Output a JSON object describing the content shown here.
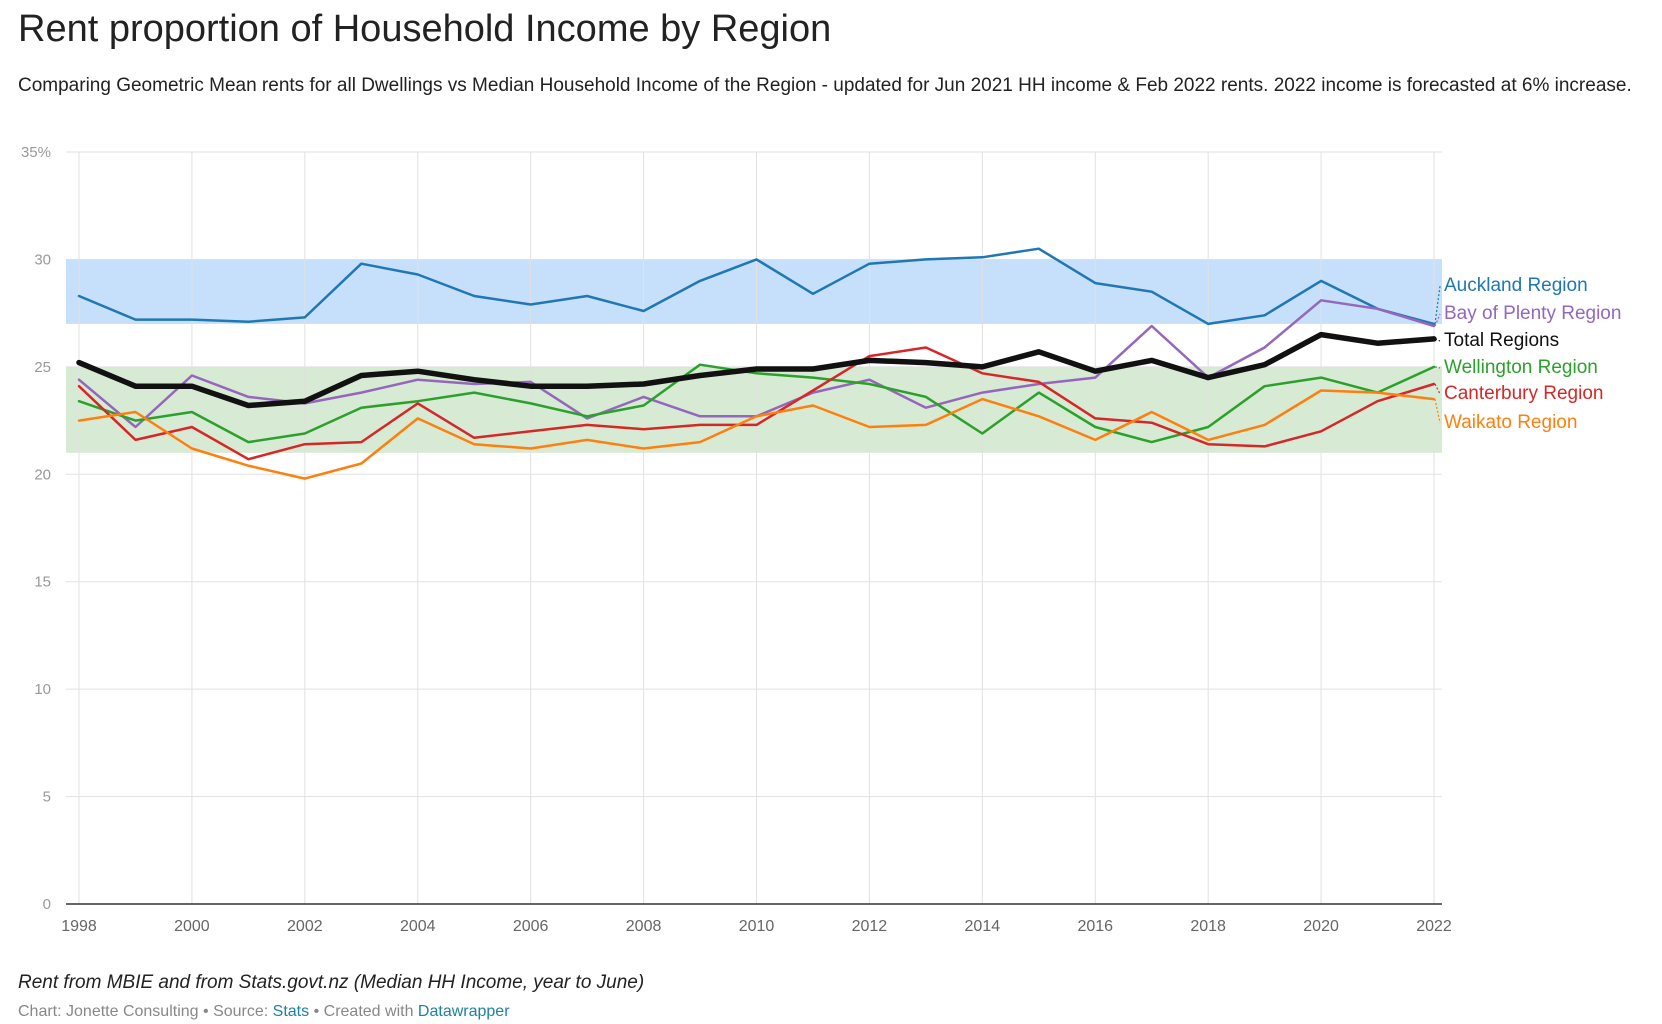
{
  "title": "Rent proportion of Household Income by Region",
  "subtitle": "Comparing Geometric Mean rents for all Dwellings vs Median Household Income of the Region - updated for Jun 2021 HH income & Feb 2022 rents. 2022 income is forecasted at 6% increase.",
  "notes": "Rent from MBIE and from Stats.govt.nz (Median HH Income, year to June)",
  "footer": {
    "chart_label": "Chart: Jonette Consulting",
    "separator": "•",
    "source_label": "Source:",
    "source_link": "Stats",
    "created_label": "Created with",
    "created_link": "Datawrapper"
  },
  "chart_data": {
    "type": "line",
    "x": [
      1998,
      1999,
      2000,
      2001,
      2002,
      2003,
      2004,
      2005,
      2006,
      2007,
      2008,
      2009,
      2010,
      2011,
      2012,
      2013,
      2014,
      2015,
      2016,
      2017,
      2018,
      2019,
      2020,
      2021,
      2022
    ],
    "xlim": [
      1998,
      2022
    ],
    "ylim": [
      0,
      35
    ],
    "x_ticks": [
      "1998",
      "2000",
      "2002",
      "2004",
      "2006",
      "2008",
      "2010",
      "2012",
      "2014",
      "2016",
      "2018",
      "2020",
      "2022"
    ],
    "y_ticks": [
      "0",
      "5",
      "10",
      "15",
      "20",
      "25",
      "30",
      "35%"
    ],
    "grid": true,
    "legend": "inline-right",
    "bands": [
      {
        "from": 27,
        "to": 30,
        "color": "#c6dffa"
      },
      {
        "from": 21,
        "to": 25,
        "color": "#d7ead3"
      }
    ],
    "series": [
      {
        "name": "Auckland Region",
        "color": "#1f77b4",
        "width": 2.5,
        "values": [
          28.3,
          27.2,
          27.2,
          27.1,
          27.3,
          29.8,
          29.3,
          28.3,
          27.9,
          28.3,
          27.6,
          29.0,
          30.0,
          28.4,
          29.8,
          30.0,
          30.1,
          30.5,
          28.9,
          28.5,
          27.0,
          27.4,
          29.0,
          27.7,
          27.0
        ]
      },
      {
        "name": "Bay of Plenty Region",
        "color": "#9467bd",
        "width": 2.5,
        "values": [
          24.4,
          22.2,
          24.6,
          23.6,
          23.3,
          23.8,
          24.4,
          24.2,
          24.3,
          22.6,
          23.6,
          22.7,
          22.7,
          23.8,
          24.4,
          23.1,
          23.8,
          24.2,
          24.5,
          26.9,
          24.5,
          25.9,
          28.1,
          27.7,
          26.9
        ]
      },
      {
        "name": "Total Regions",
        "color": "#111111",
        "width": 5.5,
        "values": [
          25.2,
          24.1,
          24.1,
          23.2,
          23.4,
          24.6,
          24.8,
          24.4,
          24.1,
          24.1,
          24.2,
          24.6,
          24.9,
          24.9,
          25.3,
          25.2,
          25.0,
          25.7,
          24.8,
          25.3,
          24.5,
          25.1,
          26.5,
          26.1,
          26.3
        ]
      },
      {
        "name": "Wellington Region",
        "color": "#2ca02c",
        "width": 2.5,
        "values": [
          23.4,
          22.5,
          22.9,
          21.5,
          21.9,
          23.1,
          23.4,
          23.8,
          23.3,
          22.7,
          23.2,
          25.1,
          24.7,
          24.5,
          24.2,
          23.6,
          21.9,
          23.8,
          22.2,
          21.5,
          22.2,
          24.1,
          24.5,
          23.8,
          25.0
        ]
      },
      {
        "name": "Canterbury Region",
        "color": "#d62728",
        "width": 2.5,
        "values": [
          24.1,
          21.6,
          22.2,
          20.7,
          21.4,
          21.5,
          23.3,
          21.7,
          22.0,
          22.3,
          22.1,
          22.3,
          22.3,
          23.9,
          25.5,
          25.9,
          24.7,
          24.3,
          22.6,
          22.4,
          21.4,
          21.3,
          22.0,
          23.4,
          24.2
        ]
      },
      {
        "name": "Waikato Region",
        "color": "#ff7f0e",
        "width": 2.5,
        "values": [
          22.5,
          22.9,
          21.2,
          20.4,
          19.8,
          20.5,
          22.6,
          21.4,
          21.2,
          21.6,
          21.2,
          21.5,
          22.7,
          23.2,
          22.2,
          22.3,
          23.5,
          22.7,
          21.6,
          22.9,
          21.6,
          22.3,
          23.9,
          23.8,
          23.5
        ]
      }
    ]
  }
}
